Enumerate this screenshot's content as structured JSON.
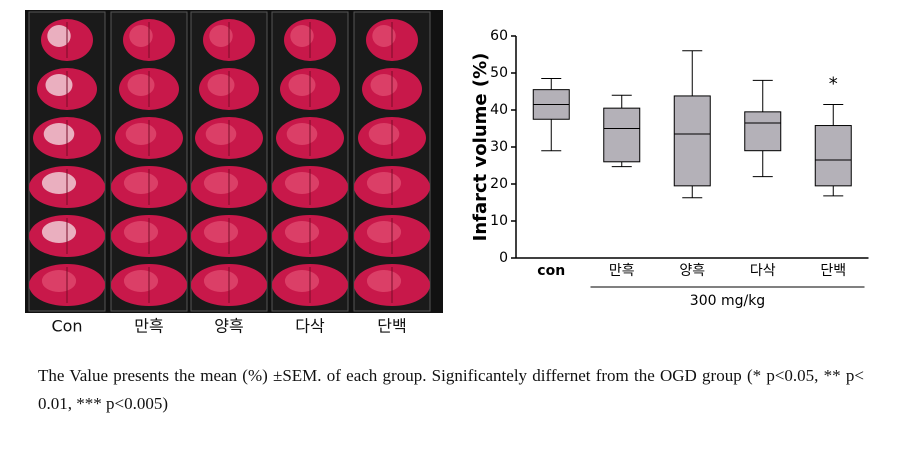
{
  "photo_labels": [
    "Con",
    "만흑",
    "양흑",
    "다삭",
    "단백"
  ],
  "chart_data": {
    "type": "box",
    "ylabel": "Infarct volume (%)",
    "categories": [
      "con",
      "만흑",
      "양흑",
      "다삭",
      "단백"
    ],
    "min": [
      29,
      24.7,
      16.3,
      22,
      16.8
    ],
    "q1": [
      37.5,
      26,
      19.5,
      29,
      19.5
    ],
    "median": [
      41.5,
      35,
      33.5,
      36.5,
      26.5
    ],
    "q3": [
      45.5,
      40.5,
      43.8,
      39.5,
      35.8
    ],
    "max": [
      48.5,
      44,
      56,
      48,
      41.5
    ],
    "color": "#b4b1b8",
    "ylim": [
      0,
      60
    ],
    "yticks": [
      0,
      10,
      20,
      30,
      40,
      50,
      60
    ],
    "group_label": "300 mg/kg",
    "annotation": {
      "text": "*",
      "category": "단백"
    }
  },
  "caption": "The Value presents the mean (%) ±SEM. of each group. Significantely differnet from the OGD group (* p<0.05, ** p< 0.01, *** p<0.005)"
}
